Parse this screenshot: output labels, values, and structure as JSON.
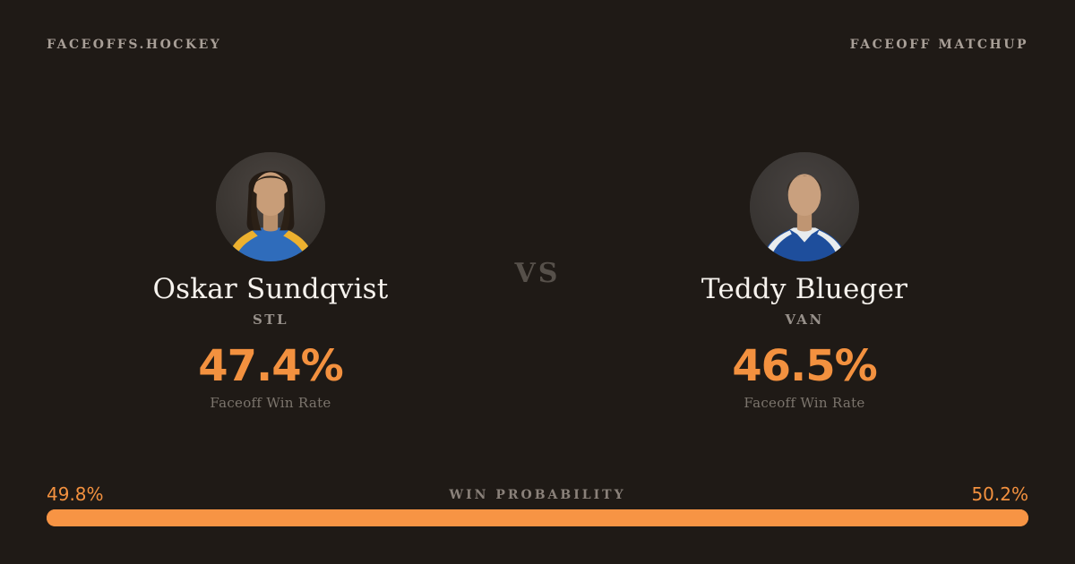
{
  "page": {
    "background_color": "#1f1a16",
    "accent_color": "#f3913f"
  },
  "header": {
    "brand": "FACEOFFS.HOCKEY",
    "page_label": "FACEOFF MATCHUP"
  },
  "matchup": {
    "vs_label": "VS",
    "players": [
      {
        "name": "Oskar Sundqvist",
        "team": "STL",
        "faceoff_win_rate": "47.4%",
        "stat_label": "Faceoff Win Rate",
        "avatar_icon": "player-headshot"
      },
      {
        "name": "Teddy Blueger",
        "team": "VAN",
        "faceoff_win_rate": "46.5%",
        "stat_label": "Faceoff Win Rate",
        "avatar_icon": "player-headshot"
      }
    ]
  },
  "win_probability": {
    "label": "WIN PROBABILITY",
    "left_value": "49.8%",
    "right_value": "50.2%",
    "left_pct": 49.8,
    "right_pct": 50.2,
    "bar_color": "#f79444"
  }
}
